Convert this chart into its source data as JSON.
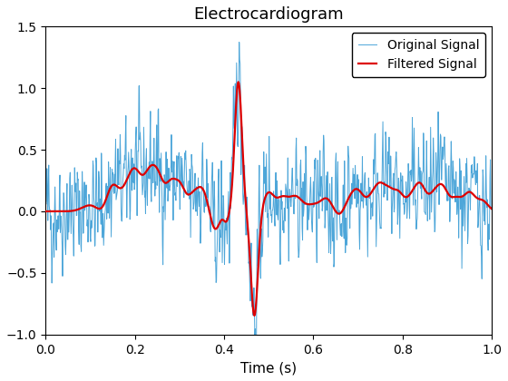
{
  "title": "Electrocardiogram",
  "xlabel": "Time (s)",
  "ylabel": "",
  "xlim": [
    0,
    1
  ],
  "ylim": [
    -1.0,
    1.5
  ],
  "yticks": [
    -1.0,
    -0.5,
    0.0,
    0.5,
    1.0,
    1.5
  ],
  "xticks": [
    0,
    0.2,
    0.4,
    0.6,
    0.8,
    1.0
  ],
  "original_color": "#4da6d9",
  "filtered_color": "#dd0000",
  "original_label": "Original Signal",
  "filtered_label": "Filtered Signal",
  "original_linewidth": 0.7,
  "filtered_linewidth": 1.6,
  "title_fontsize": 13,
  "label_fontsize": 11,
  "legend_fontsize": 10,
  "background_color": "#ffffff",
  "seed": 42,
  "fs": 1000,
  "duration": 1.0
}
